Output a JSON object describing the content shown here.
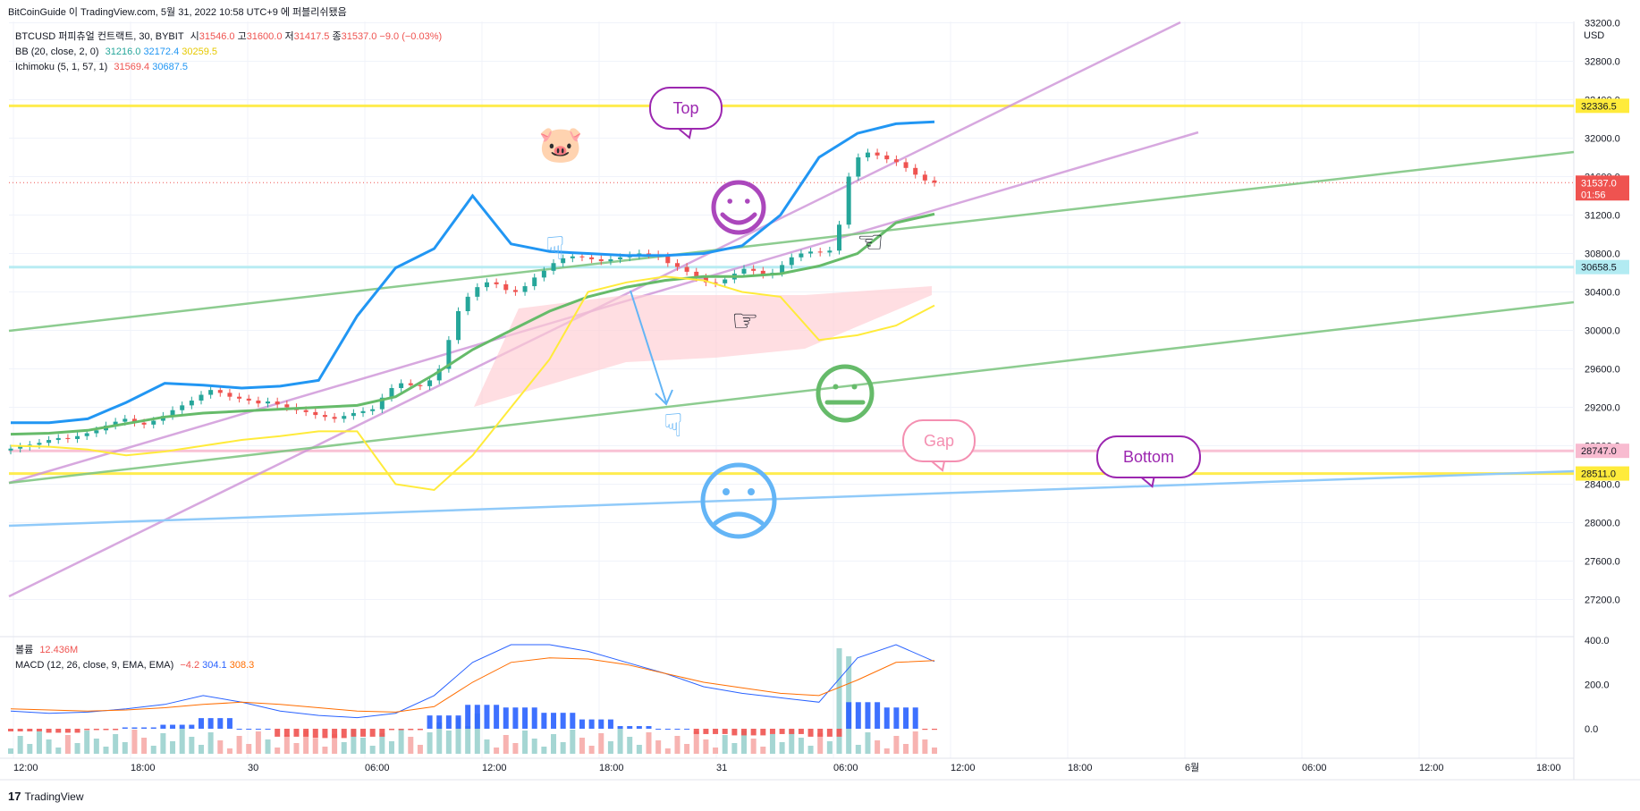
{
  "header": {
    "caption": "BitCoinGuide 이 TradingView.com, 5월 31, 2022 10:58 UTC+9 에 퍼블리쉬됐음"
  },
  "legend": {
    "symbol_line": {
      "name": "BTCUSD 퍼피츄얼 컨트랙트, 30, BYBIT",
      "o_label": "시",
      "o": "31546.0",
      "h_label": "고",
      "h": "31600.0",
      "l_label": "저",
      "l": "31417.5",
      "c_label": "종",
      "c": "31537.0",
      "chg": "−9.0 (−0.03%)"
    },
    "bb": {
      "name": "BB (20, close, 2, 0)",
      "v1": "31216.0",
      "v2": "32172.4",
      "v3": "30259.5"
    },
    "ichimoku": {
      "name": "Ichimoku (5, 1, 57, 1)",
      "v1": "31569.4",
      "v2": "30687.5"
    },
    "volume": {
      "name": "볼륨",
      "v": "12.436M"
    },
    "macd": {
      "name": "MACD (12, 26, close, 9, EMA, EMA)",
      "v1": "−4.2",
      "v2": "304.1",
      "v3": "308.3"
    }
  },
  "colors": {
    "up": "#26a69a",
    "down": "#ef5350",
    "bb_upper": "#2196f3",
    "bb_basis": "#66bb6a",
    "bb_lower": "#ffeb3b",
    "macd": "#2962ff",
    "signal": "#ff6d00"
  },
  "axis": {
    "currency": "USD",
    "price_ticks": [
      "33200.0",
      "32800.0",
      "32400.0",
      "32000.0",
      "31600.0",
      "31200.0",
      "30800.0",
      "30400.0",
      "30000.0",
      "29600.0",
      "29200.0",
      "28800.0",
      "28400.0",
      "28000.0",
      "27600.0",
      "27200.0"
    ],
    "macd_ticks": [
      "400.0",
      "200.0",
      "0.0"
    ],
    "time_ticks": [
      "12:00",
      "18:00",
      "30",
      "06:00",
      "12:00",
      "18:00",
      "31",
      "06:00",
      "12:00",
      "18:00",
      "6월",
      "06:00",
      "12:00",
      "18:00"
    ]
  },
  "price_tags": [
    {
      "label": "32336.5",
      "value": 32336.5,
      "bg": "#ffeb3b",
      "fg": "#131722"
    },
    {
      "label": "31537.0",
      "value": 31537.0,
      "bg": "#ef5350",
      "fg": "#ffffff",
      "sub": "01:56"
    },
    {
      "label": "30658.5",
      "value": 30658.5,
      "bg": "#b2ebf2",
      "fg": "#131722"
    },
    {
      "label": "28747.0",
      "value": 28747.0,
      "bg": "#f8bbd0",
      "fg": "#131722"
    },
    {
      "label": "28511.0",
      "value": 28511.0,
      "bg": "#ffeb3b",
      "fg": "#131722"
    }
  ],
  "callouts": [
    {
      "text": "Top",
      "color": "#9c27b0",
      "border": "#9c27b0"
    },
    {
      "text": "Gap",
      "color": "#f48fb1",
      "border": "#f48fb1"
    },
    {
      "text": "Bottom",
      "color": "#9c27b0",
      "border": "#9c27b0"
    }
  ],
  "footer": {
    "brand": "TradingView"
  },
  "chart_data": {
    "type": "candlestick",
    "interval": "30m",
    "ylim": [
      27000,
      33400
    ],
    "candle_closes": [
      28770,
      28790,
      28810,
      28830,
      28860,
      28880,
      28870,
      28900,
      28930,
      28960,
      29010,
      29050,
      29080,
      29040,
      29020,
      29060,
      29110,
      29170,
      29220,
      29270,
      29330,
      29380,
      29350,
      29310,
      29290,
      29270,
      29240,
      29260,
      29230,
      29200,
      29170,
      29150,
      29120,
      29100,
      29080,
      29110,
      29140,
      29160,
      29180,
      29300,
      29400,
      29450,
      29430,
      29420,
      29480,
      29600,
      29900,
      30200,
      30350,
      30450,
      30500,
      30480,
      30420,
      30400,
      30460,
      30550,
      30620,
      30700,
      30750,
      30770,
      30760,
      30740,
      30720,
      30740,
      30760,
      30780,
      30800,
      30790,
      30770,
      30700,
      30660,
      30610,
      30550,
      30500,
      30490,
      30530,
      30590,
      30640,
      30620,
      30580,
      30600,
      30680,
      30760,
      30800,
      30820,
      30810,
      30830,
      31100,
      31600,
      31800,
      31850,
      31820,
      31780,
      31750,
      31690,
      31620,
      31560,
      31537
    ],
    "bb_basis": [
      28920,
      28930,
      28960,
      29030,
      29100,
      29140,
      29160,
      29180,
      29200,
      29220,
      29310,
      29540,
      29800,
      30000,
      30200,
      30350,
      30450,
      30520,
      30560,
      30560,
      30590,
      30670,
      30800,
      31120,
      31210
    ],
    "bb_upper": [
      29040,
      29040,
      29080,
      29250,
      29450,
      29430,
      29400,
      29420,
      29480,
      30150,
      30650,
      30850,
      31400,
      30900,
      30820,
      30800,
      30780,
      30780,
      30800,
      30880,
      31200,
      31800,
      32050,
      32150,
      32170
    ],
    "bb_lower": [
      28800,
      28790,
      28760,
      28700,
      28740,
      28800,
      28860,
      28900,
      28950,
      28950,
      28400,
      28340,
      28700,
      29200,
      29700,
      30400,
      30500,
      30560,
      30520,
      30400,
      30350,
      29900,
      29950,
      30050,
      30260
    ],
    "macd_line": [
      80,
      70,
      75,
      90,
      110,
      150,
      120,
      80,
      60,
      50,
      70,
      150,
      300,
      380,
      380,
      350,
      300,
      250,
      190,
      160,
      140,
      120,
      320,
      380,
      304
    ],
    "signal_line": [
      90,
      85,
      80,
      85,
      95,
      110,
      120,
      110,
      95,
      80,
      75,
      100,
      210,
      300,
      320,
      315,
      290,
      250,
      210,
      185,
      160,
      150,
      220,
      300,
      308
    ],
    "horizontal_levels": [
      32336.5,
      30658.5,
      28747.0,
      28511.0
    ]
  }
}
